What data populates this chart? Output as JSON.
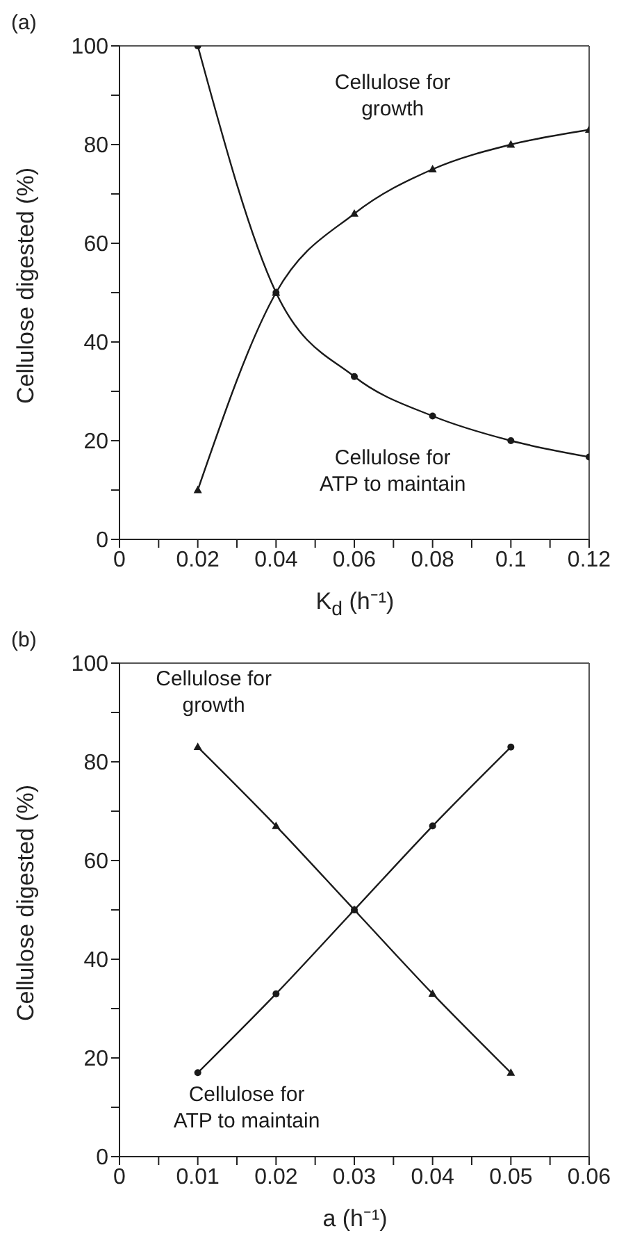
{
  "chart_data": [
    {
      "type": "line",
      "title": "(a)",
      "xlabel": "K$_{d}$ (h⁻¹)",
      "ylabel": "Cellulose digested (%)",
      "x": [
        0.02,
        0.04,
        0.06,
        0.08,
        0.1,
        0.12
      ],
      "series": [
        {
          "name": "Cellulose for growth",
          "color": "#1a1a1a",
          "marker": "triangle",
          "values": [
            10,
            50,
            66,
            75,
            80,
            83
          ]
        },
        {
          "name": "Cellulose for ATP to maintain",
          "color": "#1a1a1a",
          "marker": "circle",
          "values": [
            100,
            50,
            33,
            25,
            20,
            16.7
          ]
        }
      ],
      "xlim": [
        0,
        0.12
      ],
      "xticks": [
        0,
        {
          "value": 0.01,
          "label": null
        },
        0.02,
        {
          "value": 0.03,
          "label": null
        },
        0.04,
        {
          "value": 0.05,
          "label": null
        },
        0.06,
        {
          "value": 0.07,
          "label": null
        },
        0.08,
        {
          "value": 0.09,
          "label": null
        },
        0.1,
        {
          "value": 0.11,
          "label": null
        },
        0.12
      ],
      "ylim": [
        0,
        100
      ],
      "yticks": [
        0,
        {
          "value": 10,
          "label": null
        },
        20,
        {
          "value": 30,
          "label": null
        },
        40,
        {
          "value": 50,
          "label": null
        },
        60,
        {
          "value": 70,
          "label": null
        },
        80,
        {
          "value": 90,
          "label": null
        },
        100
      ],
      "grid": false,
      "legend": false
    },
    {
      "type": "line",
      "title": "(b)",
      "xlabel": "a (h⁻¹)",
      "ylabel": "Cellulose digested (%)",
      "x": [
        0.01,
        0.02,
        0.03,
        0.04,
        0.05
      ],
      "series": [
        {
          "name": "Cellulose for growth",
          "color": "#1a1a1a",
          "marker": "triangle",
          "values": [
            83,
            67,
            50,
            33,
            17
          ]
        },
        {
          "name": "Cellulose for ATP to maintain",
          "color": "#1a1a1a",
          "marker": "circle",
          "values": [
            17,
            33,
            50,
            67,
            83
          ]
        }
      ],
      "xlim": [
        0,
        0.06
      ],
      "xticks": [
        0,
        {
          "value": 0.005,
          "label": null
        },
        0.01,
        {
          "value": 0.015,
          "label": null
        },
        0.02,
        {
          "value": 0.025,
          "label": null
        },
        0.03,
        {
          "value": 0.035,
          "label": null
        },
        0.04,
        {
          "value": 0.045,
          "label": null
        },
        0.05,
        {
          "value": 0.055,
          "label": null
        },
        0.06
      ],
      "ylim": [
        0,
        100
      ],
      "yticks": [
        0,
        {
          "value": 10,
          "label": null
        },
        20,
        {
          "value": 30,
          "label": null
        },
        40,
        {
          "value": 50,
          "label": null
        },
        60,
        {
          "value": 70,
          "label": null
        },
        80,
        {
          "value": 90,
          "label": null
        },
        100
      ],
      "grid": false,
      "legend": false
    }
  ]
}
